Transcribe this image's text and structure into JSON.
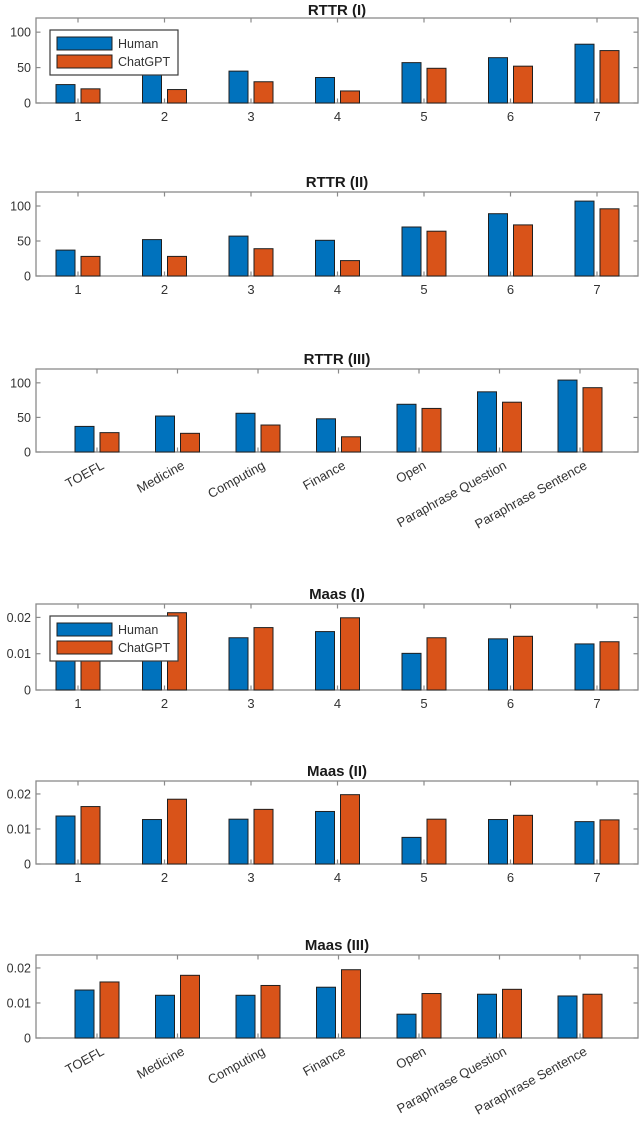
{
  "figure": {
    "background": "#ffffff",
    "description": "Six stacked bar-chart panels comparing Human vs ChatGPT lexical diversity (RTTR and Maas) across 7 domains"
  },
  "palette": {
    "human": "#0072BD",
    "chatgpt": "#D95319",
    "axis_line": "#8a8a8a",
    "tick_text": "#333333",
    "title_text": "#1a1a1a",
    "bar_edge": "#1f1f1f",
    "legend_border": "#3b3b3b",
    "legend_bg": "#ffffff"
  },
  "legend": {
    "items": [
      "Human",
      "ChatGPT"
    ]
  },
  "chart_data": [
    {
      "type": "bar",
      "title": "RTTR (I)",
      "categories": [
        "1",
        "2",
        "3",
        "4",
        "5",
        "6",
        "7"
      ],
      "series": [
        {
          "name": "Human",
          "values": [
            26,
            40,
            45,
            36,
            57,
            64,
            83
          ]
        },
        {
          "name": "ChatGPT",
          "values": [
            20,
            19,
            30,
            17,
            49,
            52,
            74
          ]
        }
      ],
      "xlabel": "",
      "ylabel": "",
      "ylim": [
        0,
        120
      ],
      "yticks": [
        0,
        50,
        100
      ],
      "ytick_labels": [
        "0",
        "50",
        "100"
      ],
      "xtick_rotation": 0,
      "grid": false,
      "legend": true,
      "legend_position": "top-left"
    },
    {
      "type": "bar",
      "title": "RTTR (II)",
      "categories": [
        "1",
        "2",
        "3",
        "4",
        "5",
        "6",
        "7"
      ],
      "series": [
        {
          "name": "Human",
          "values": [
            37,
            52,
            57,
            51,
            70,
            89,
            107
          ]
        },
        {
          "name": "ChatGPT",
          "values": [
            28,
            28,
            39,
            22,
            64,
            73,
            96
          ]
        }
      ],
      "xlabel": "",
      "ylabel": "",
      "ylim": [
        0,
        120
      ],
      "yticks": [
        0,
        50,
        100
      ],
      "ytick_labels": [
        "0",
        "50",
        "100"
      ],
      "xtick_rotation": 0,
      "grid": false,
      "legend": false,
      "legend_position": null
    },
    {
      "type": "bar",
      "title": "RTTR (III)",
      "categories": [
        "TOEFL",
        "Medicine",
        "Computing",
        "Finance",
        "Open",
        "Paraphrase Question",
        "Paraphrase Sentence"
      ],
      "series": [
        {
          "name": "Human",
          "values": [
            37,
            52,
            56,
            48,
            69,
            87,
            104
          ]
        },
        {
          "name": "ChatGPT",
          "values": [
            28,
            27,
            39,
            22,
            63,
            72,
            93
          ]
        }
      ],
      "xlabel": "",
      "ylabel": "",
      "ylim": [
        0,
        120
      ],
      "yticks": [
        0,
        50,
        100
      ],
      "ytick_labels": [
        "0",
        "50",
        "100"
      ],
      "xtick_rotation": 30,
      "grid": false,
      "legend": false,
      "legend_position": null
    },
    {
      "type": "bar",
      "title": "Maas (I)",
      "categories": [
        "1",
        "2",
        "3",
        "4",
        "5",
        "6",
        "7"
      ],
      "series": [
        {
          "name": "Human",
          "values": [
            0.0138,
            0.0124,
            0.0144,
            0.0161,
            0.0101,
            0.0141,
            0.0127
          ]
        },
        {
          "name": "ChatGPT",
          "values": [
            0.0158,
            0.0213,
            0.0172,
            0.0199,
            0.0144,
            0.0148,
            0.0133
          ]
        }
      ],
      "xlabel": "",
      "ylabel": "",
      "ylim": [
        0,
        0.0237
      ],
      "yticks": [
        0,
        0.01,
        0.02
      ],
      "ytick_labels": [
        "0",
        "0.01",
        "0.02"
      ],
      "xtick_rotation": 0,
      "grid": false,
      "legend": true,
      "legend_position": "top-left"
    },
    {
      "type": "bar",
      "title": "Maas (II)",
      "categories": [
        "1",
        "2",
        "3",
        "4",
        "5",
        "6",
        "7"
      ],
      "series": [
        {
          "name": "Human",
          "values": [
            0.0137,
            0.0127,
            0.0128,
            0.015,
            0.0076,
            0.0127,
            0.0121
          ]
        },
        {
          "name": "ChatGPT",
          "values": [
            0.0164,
            0.0185,
            0.0156,
            0.0198,
            0.0128,
            0.0139,
            0.0126
          ]
        }
      ],
      "xlabel": "",
      "ylabel": "",
      "ylim": [
        0,
        0.0237
      ],
      "yticks": [
        0,
        0.01,
        0.02
      ],
      "ytick_labels": [
        "0",
        "0.01",
        "0.02"
      ],
      "xtick_rotation": 0,
      "grid": false,
      "legend": false,
      "legend_position": null
    },
    {
      "type": "bar",
      "title": "Maas (III)",
      "categories": [
        "TOEFL",
        "Medicine",
        "Computing",
        "Finance",
        "Open",
        "Paraphrase Question",
        "Paraphrase Sentence"
      ],
      "series": [
        {
          "name": "Human",
          "values": [
            0.0137,
            0.0122,
            0.0122,
            0.0145,
            0.0068,
            0.0125,
            0.012
          ]
        },
        {
          "name": "ChatGPT",
          "values": [
            0.016,
            0.0179,
            0.015,
            0.0195,
            0.0127,
            0.0139,
            0.0125
          ]
        }
      ],
      "xlabel": "",
      "ylabel": "",
      "ylim": [
        0,
        0.0237
      ],
      "yticks": [
        0,
        0.01,
        0.02
      ],
      "ytick_labels": [
        "0",
        "0.01",
        "0.02"
      ],
      "xtick_rotation": 30,
      "grid": false,
      "legend": false,
      "legend_position": null
    }
  ]
}
